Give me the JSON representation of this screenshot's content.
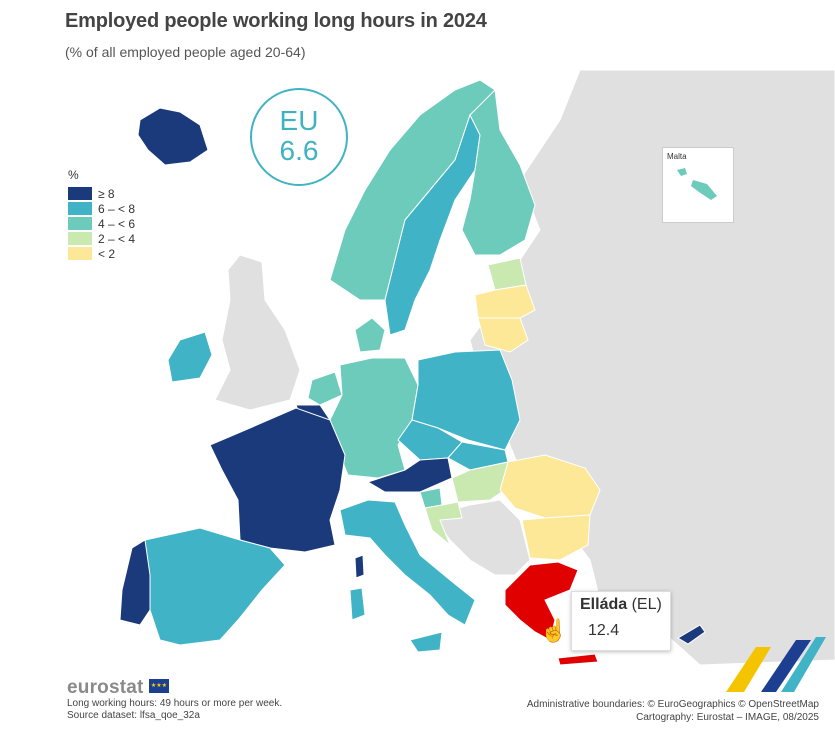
{
  "title": "Employed people working long hours in 2024",
  "subtitle": "(% of all employed people aged 20-64)",
  "eu_badge": {
    "label": "EU",
    "value": "6.6"
  },
  "legend": {
    "unit": "%",
    "classes": [
      {
        "label": "≥ 8",
        "color": "#1b3a7c"
      },
      {
        "label": "6 – < 8",
        "color": "#40b3c6"
      },
      {
        "label": "4 – < 6",
        "color": "#6ccbbb"
      },
      {
        "label": "2 – < 4",
        "color": "#c9e9b1"
      },
      {
        "label": "< 2",
        "color": "#fde898"
      }
    ],
    "no_data_color": "#e0e0e0",
    "highlight_color": "#e00000"
  },
  "inset": {
    "label": "Malta"
  },
  "tooltip": {
    "name": "Elláda",
    "code": "(EL)",
    "value": "12.4"
  },
  "branding": {
    "logo_text": "eurostat"
  },
  "footnote": {
    "line1": "Long working hours: 49 hours or more per week.",
    "line2": "Source dataset: lfsa_qoe_32a"
  },
  "credits": {
    "line1": "Administrative boundaries: © EuroGeographics © OpenStreetMap",
    "line2": "Cartography: Eurostat – IMAGE, 08/2025"
  }
}
